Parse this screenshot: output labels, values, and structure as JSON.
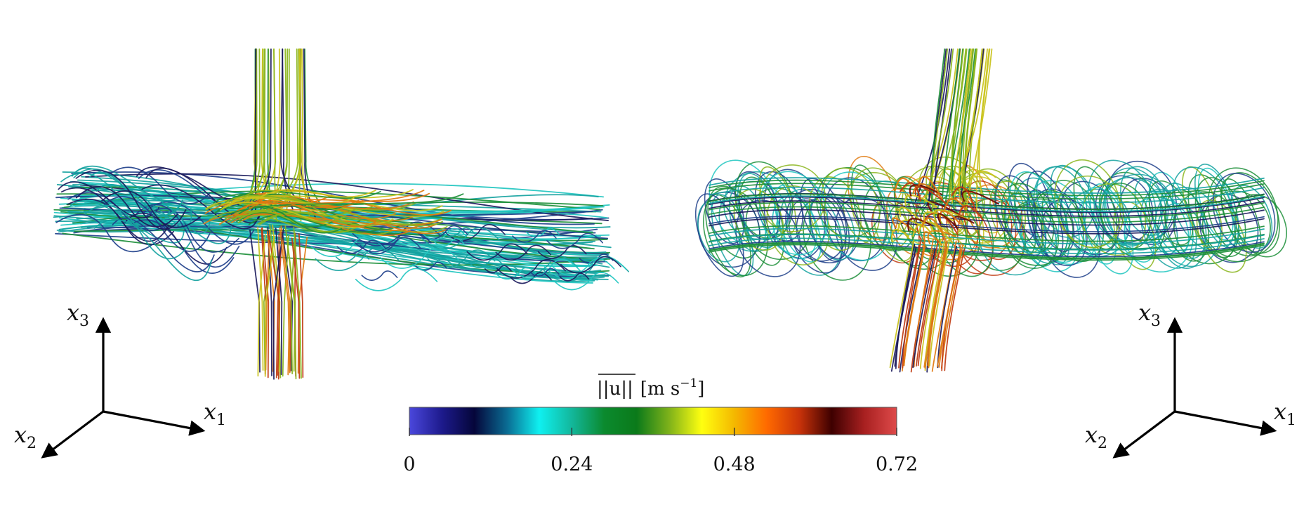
{
  "colorbar": {
    "label_bar": "||u||",
    "label_unit": "[m s",
    "label_exp": "−1",
    "label_close": "]",
    "ticks": [
      "0",
      "0.24",
      "0.48",
      "0.72"
    ],
    "tick_values": [
      0,
      0.24,
      0.48,
      0.72
    ],
    "range": [
      0,
      0.72
    ],
    "colormap": [
      "#4a47dc",
      "#1d1a8c",
      "#05063a",
      "#0a6b92",
      "#0ff0f0",
      "#13b79b",
      "#0b8a2e",
      "#0b7a1a",
      "#7fb21a",
      "#ffff10",
      "#f4b800",
      "#ff6a00",
      "#c9330a",
      "#3e0000",
      "#a82020",
      "#de4a4a"
    ]
  },
  "axes_left": {
    "x1": "x",
    "x1_sub": "1",
    "x2": "x",
    "x2_sub": "2",
    "x3": "x",
    "x3_sub": "3"
  },
  "axes_right": {
    "x1": "x",
    "x1_sub": "1",
    "x2": "x",
    "x2_sub": "2",
    "x3": "x",
    "x3_sub": "3"
  },
  "palette": {
    "background": "#ffffff",
    "axis_color": "#000000",
    "navy": "#1b1a5c",
    "blue": "#1e3f8a",
    "teal": "#15a2a0",
    "cyan": "#1fc6c0",
    "green": "#1d8f3a",
    "lime": "#8ab51c",
    "yellow": "#c9c21a",
    "orange": "#e07a10",
    "red": "#c03a10",
    "darkred": "#6e0a05"
  }
}
